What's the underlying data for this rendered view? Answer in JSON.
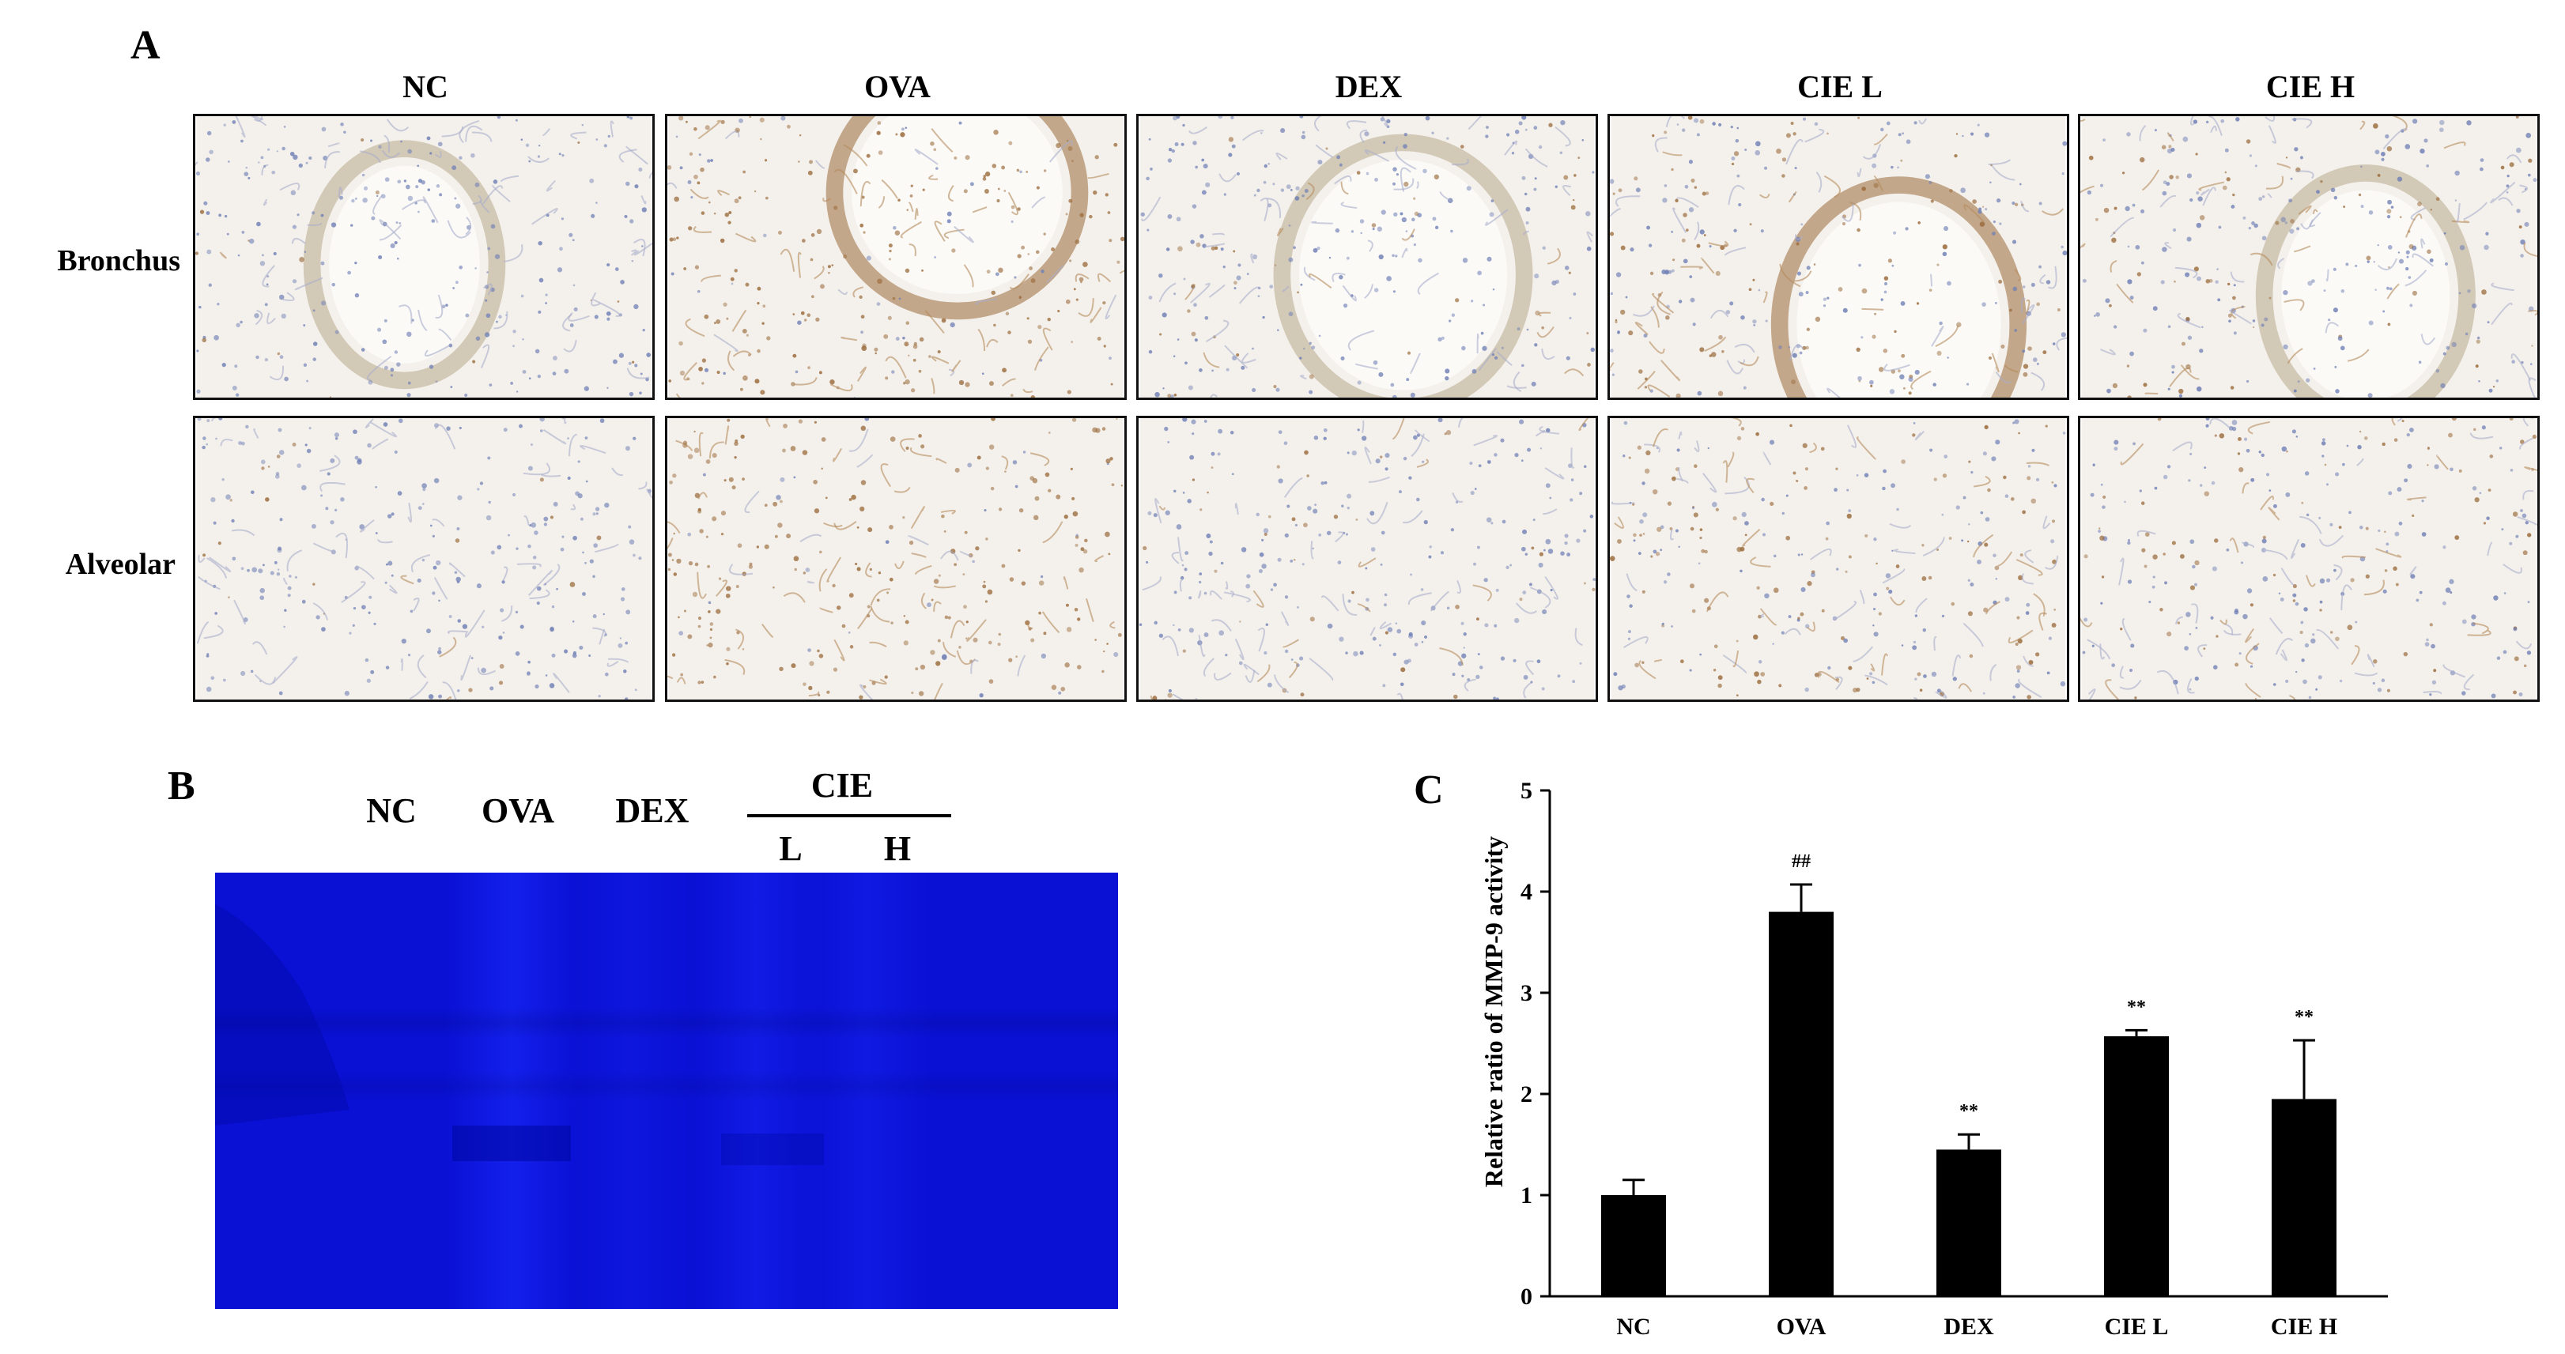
{
  "panels": {
    "a_letter": "A",
    "b_letter": "B",
    "c_letter": "C"
  },
  "panel_a": {
    "columns": [
      "NC",
      "OVA",
      "DEX",
      "CIE L",
      "CIE H"
    ],
    "rows": [
      "Bronchus",
      "Alveolar"
    ],
    "stain_colors": {
      "background": "#f4f1ec",
      "nuclei": "#6f7fb5",
      "brown": "#9a6a3a"
    }
  },
  "panel_b": {
    "lanes": [
      "NC",
      "OVA",
      "DEX"
    ],
    "group_label": "CIE",
    "sub_lanes": [
      "L",
      "H"
    ],
    "gel_color": "#0a10d6"
  },
  "chart_data": {
    "type": "bar",
    "categories": [
      "NC",
      "OVA",
      "DEX",
      "CIE L",
      "CIE H"
    ],
    "values": [
      1.0,
      3.8,
      1.45,
      2.57,
      1.95
    ],
    "errors": [
      0.15,
      0.27,
      0.15,
      0.06,
      0.58
    ],
    "annotations": [
      "",
      "##",
      "**",
      "**",
      "**"
    ],
    "ylabel": "Relative ratio of MMP-9 activity",
    "ylim": [
      0,
      5
    ],
    "yticks": [
      "0",
      "1",
      "2",
      "3",
      "4",
      "5"
    ],
    "bar_color": "#000000",
    "grid": false
  }
}
